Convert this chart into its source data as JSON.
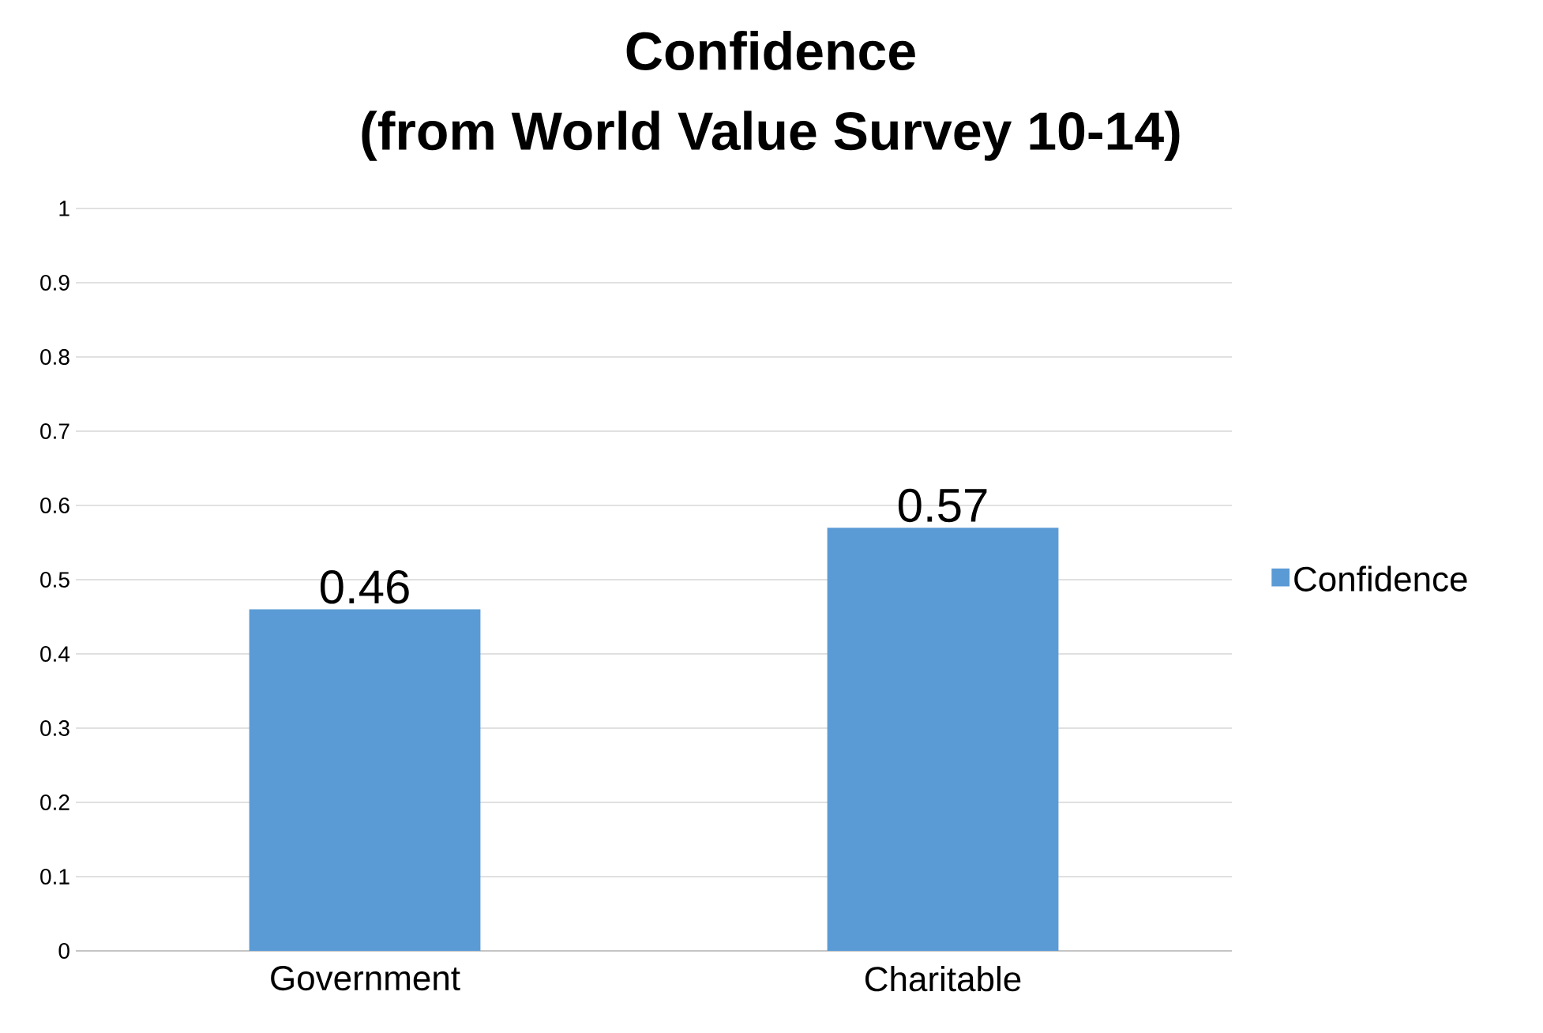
{
  "chart_data": {
    "type": "bar",
    "title": "Confidence",
    "subtitle": "(from World Value Survey 10-14)",
    "categories": [
      "Government",
      "Charitable"
    ],
    "series": [
      {
        "name": "Confidence",
        "color": "#5b9bd5",
        "values": [
          0.46,
          0.57
        ]
      }
    ],
    "ylim": [
      0,
      1
    ],
    "yticks": [
      0,
      0.1,
      0.2,
      0.3,
      0.4,
      0.5,
      0.6,
      0.7,
      0.8,
      0.9,
      1
    ],
    "grid": "y",
    "legend": "right",
    "data_labels": true
  }
}
